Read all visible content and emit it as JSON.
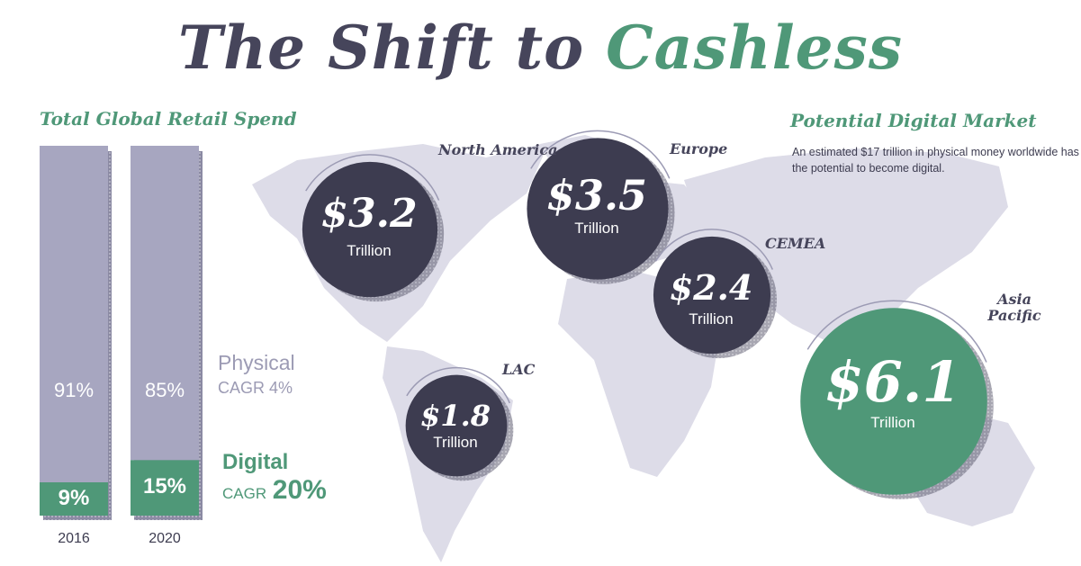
{
  "title": {
    "main": "The Shift to ",
    "accent": "Cashless"
  },
  "retail": {
    "heading": "Total Global Retail Spend",
    "physical_label": "Physical",
    "physical_cagr": "CAGR 4%",
    "digital_label": "Digital",
    "digital_cagr_label": "CAGR",
    "digital_cagr_value": "20%"
  },
  "market": {
    "heading": "Potential Digital Market",
    "description": "An estimated $17 trillion in physical money worldwide has the potential to become digital."
  },
  "colors": {
    "dark": "#3d3c50",
    "green": "#4f9878",
    "physical": "#a7a6c0",
    "map": "#dddce8"
  },
  "chart_data": [
    {
      "type": "bar",
      "title": "Total Global Retail Spend",
      "categories": [
        "2016",
        "2020"
      ],
      "series": [
        {
          "name": "Physical",
          "values": [
            91,
            85
          ],
          "labels": [
            "91%",
            "85%"
          ]
        },
        {
          "name": "Digital",
          "values": [
            9,
            15
          ],
          "labels": [
            "9%",
            "15%"
          ]
        }
      ],
      "stacked": true,
      "ylim": [
        0,
        100
      ]
    },
    {
      "type": "bubble",
      "title": "Potential Digital Market",
      "unit": "Trillion",
      "points": [
        {
          "region": "North America",
          "value": 3.2,
          "label": "$3.2"
        },
        {
          "region": "Europe",
          "value": 3.5,
          "label": "$3.5"
        },
        {
          "region": "CEMEA",
          "value": 2.4,
          "label": "$2.4"
        },
        {
          "region": "LAC",
          "value": 1.8,
          "label": "$1.8"
        },
        {
          "region": "Asia Pacific",
          "value": 6.1,
          "label": "$6.1"
        }
      ]
    }
  ]
}
